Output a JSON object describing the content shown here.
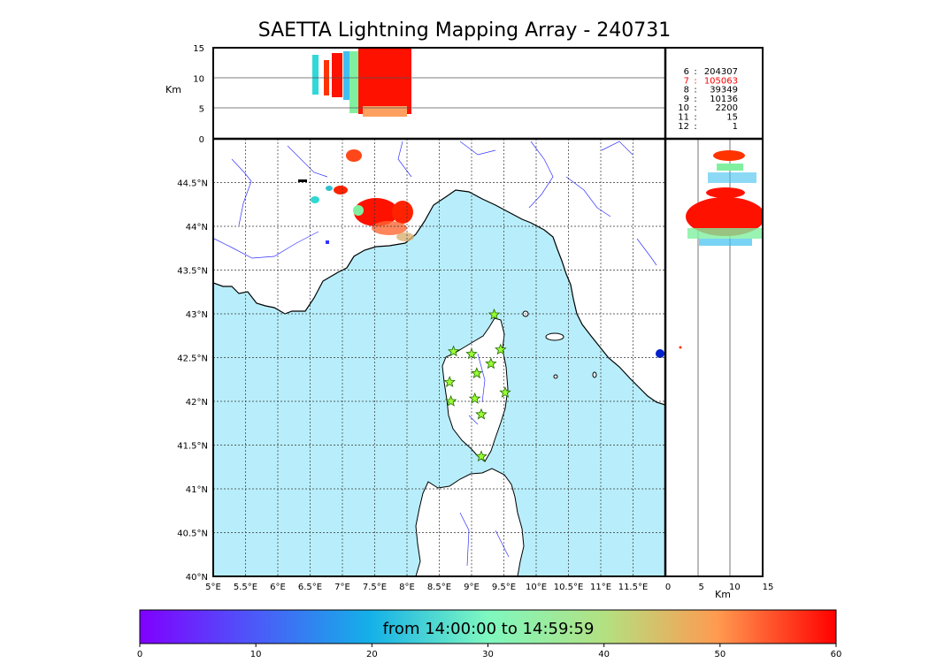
{
  "title": "SAETTA Lightning Mapping Array - 240731",
  "altitude_axis": {
    "label": "Km",
    "ticks": [
      "0",
      "5",
      "10",
      "15"
    ],
    "range_km": [
      0,
      15
    ]
  },
  "stations_table": [
    {
      "count_stations": "6",
      "sources": "204307",
      "highlight": false
    },
    {
      "count_stations": "7",
      "sources": "105063",
      "highlight": true
    },
    {
      "count_stations": "8",
      "sources": "39349",
      "highlight": false
    },
    {
      "count_stations": "9",
      "sources": "10136",
      "highlight": false
    },
    {
      "count_stations": "10",
      "sources": "2200",
      "highlight": false
    },
    {
      "count_stations": "11",
      "sources": "15",
      "highlight": false
    },
    {
      "count_stations": "12",
      "sources": "1",
      "highlight": false
    }
  ],
  "map": {
    "lon_range": [
      5,
      12
    ],
    "lat_range": [
      40,
      45
    ],
    "lon_ticks": [
      "5°E",
      "5.5°E",
      "6°E",
      "6.5°E",
      "7°E",
      "7.5°E",
      "8°E",
      "8.5°E",
      "9°E",
      "9.5°E",
      "10°E",
      "10.5°E",
      "11°E",
      "11.5°E"
    ],
    "lat_ticks": [
      "40°N",
      "40.5°N",
      "41°N",
      "41.5°N",
      "42°N",
      "42.5°N",
      "43°N",
      "43.5°N",
      "44°N",
      "44.5°N"
    ],
    "sea_color": "#b8eefb",
    "land_color": "#ffffff",
    "river_color": "#3333ff",
    "station_color": "#99ff33",
    "stations_count": 12
  },
  "colorbar": {
    "label": "from 14:00:00 to 14:59:59",
    "ticks": [
      "0",
      "10",
      "20",
      "30",
      "40",
      "50",
      "60"
    ],
    "range_minutes": [
      0,
      60
    ],
    "colormap": "rainbow"
  }
}
